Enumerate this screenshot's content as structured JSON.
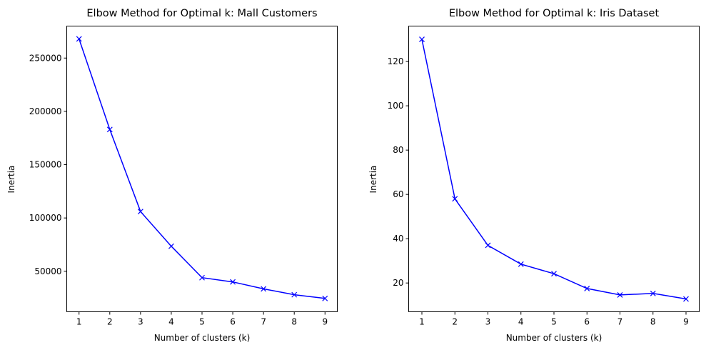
{
  "chart_data": [
    {
      "type": "line",
      "title": "Elbow Method for Optimal k: Mall Customers",
      "xlabel": "Number of clusters (k)",
      "ylabel": "Inertia",
      "x": [
        1,
        2,
        3,
        4,
        5,
        6,
        7,
        8,
        9
      ],
      "xticks": [
        1,
        2,
        3,
        4,
        5,
        6,
        7,
        8,
        9
      ],
      "yticks": [
        50000,
        100000,
        150000,
        200000,
        250000
      ],
      "xlim": [
        0.6,
        9.4
      ],
      "ylim": [
        12000,
        280000
      ],
      "series": [
        {
          "values": [
            268000,
            183000,
            106000,
            73500,
            44000,
            40000,
            33500,
            28000,
            24500
          ],
          "color": "#0000ff",
          "marker": "x"
        }
      ],
      "grid": false
    },
    {
      "type": "line",
      "title": "Elbow Method for Optimal k: Iris Dataset",
      "xlabel": "Number of clusters (k)",
      "ylabel": "Inertia",
      "x": [
        1,
        2,
        3,
        4,
        5,
        6,
        7,
        8,
        9
      ],
      "xticks": [
        1,
        2,
        3,
        4,
        5,
        6,
        7,
        8,
        9
      ],
      "yticks": [
        20,
        40,
        60,
        80,
        100,
        120
      ],
      "xlim": [
        0.6,
        9.4
      ],
      "ylim": [
        7,
        136
      ],
      "series": [
        {
          "values": [
            130,
            58,
            37,
            28.5,
            24.2,
            17.5,
            14.6,
            15.3,
            12.8
          ],
          "color": "#0000ff",
          "marker": "x"
        }
      ],
      "grid": false
    }
  ]
}
